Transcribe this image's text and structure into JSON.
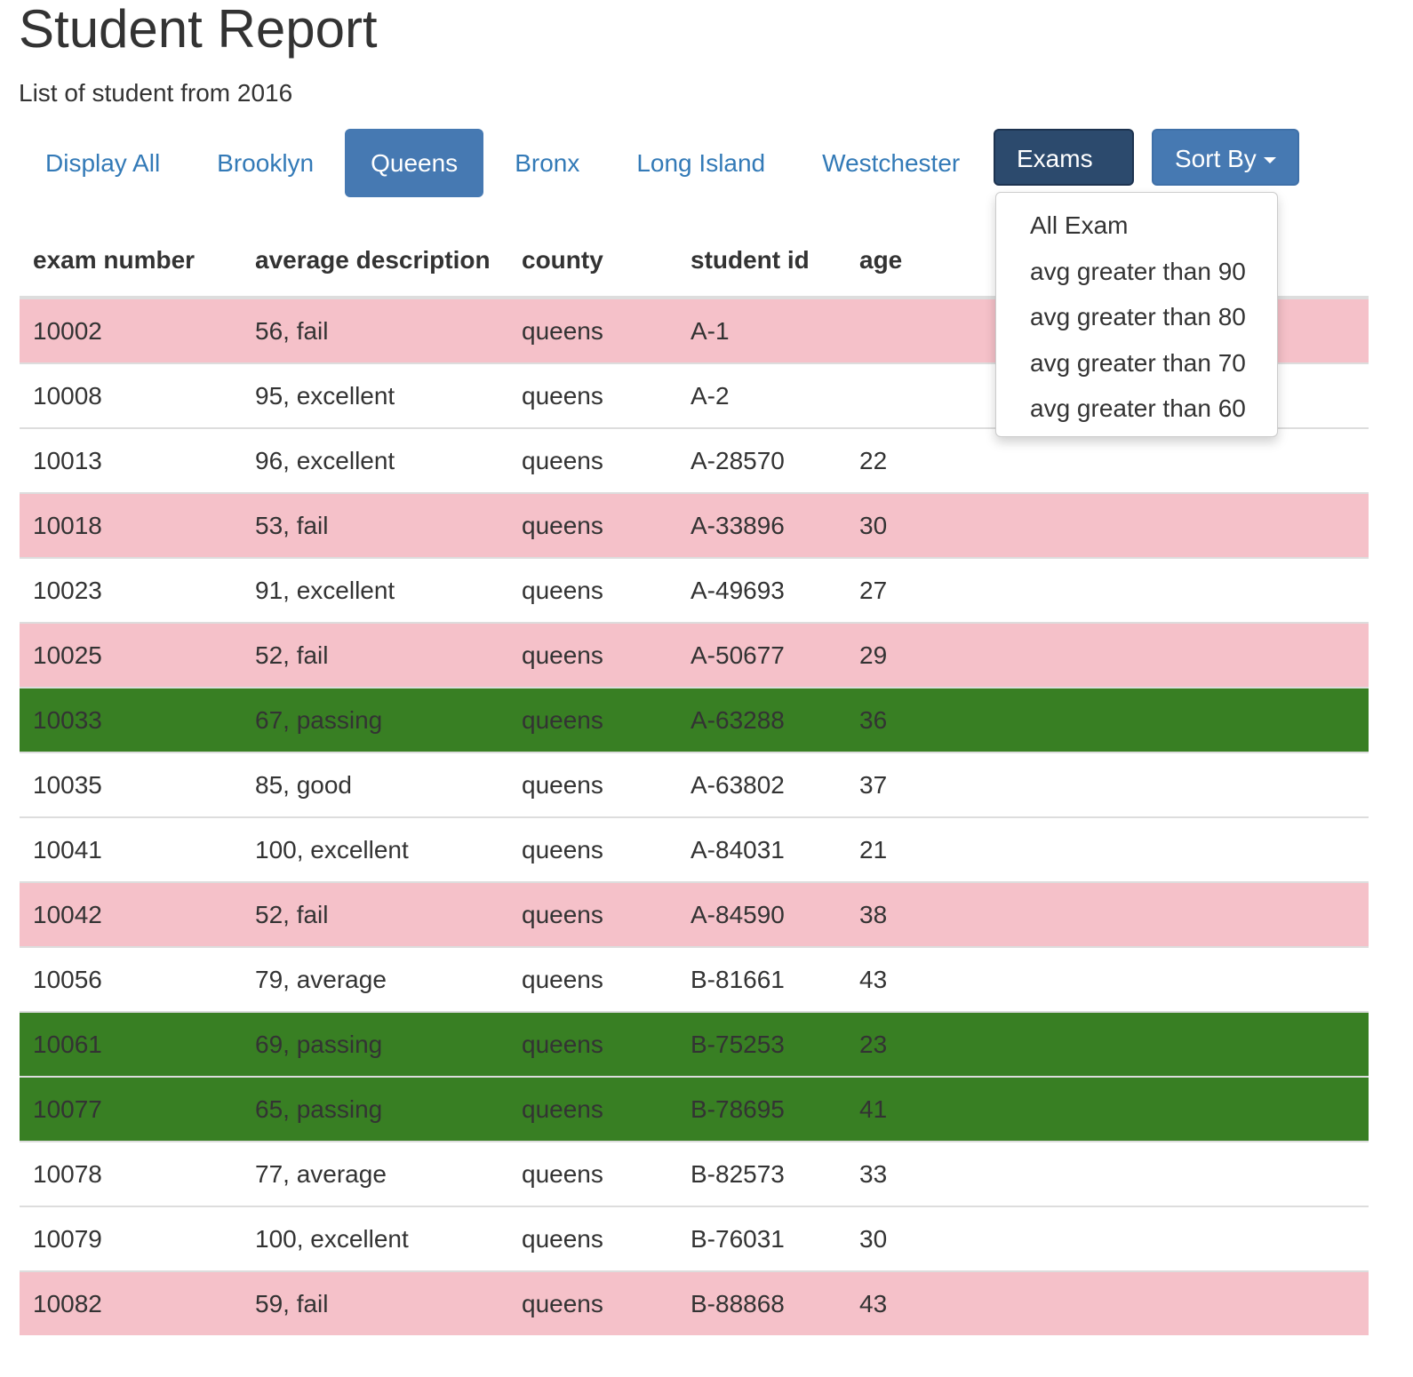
{
  "title": "Student Report",
  "subtitle": "List of student from 2016",
  "nav": [
    {
      "label": "Display All"
    },
    {
      "label": "Brooklyn"
    },
    {
      "label": "Queens",
      "active": true
    },
    {
      "label": "Bronx"
    },
    {
      "label": "Long Island"
    },
    {
      "label": "Westchester"
    }
  ],
  "buttons": {
    "exams": "Exams",
    "sort": "Sort By"
  },
  "exams_menu": [
    "All Exam",
    "avg greater than 90",
    "avg greater than 80",
    "avg greater than 70",
    "avg greater than 60"
  ],
  "colors": {
    "fail": "#f5c1c9",
    "passing": "#387f23",
    "active": "#4679b2",
    "link": "#337ab7"
  },
  "table": {
    "headers": [
      "exam number",
      "average description",
      "county",
      "student id",
      "age"
    ],
    "rows": [
      {
        "exam": "10002",
        "avg": "56, fail",
        "county": "queens",
        "id": "A-1",
        "age": "",
        "status": "fail"
      },
      {
        "exam": "10008",
        "avg": "95, excellent",
        "county": "queens",
        "id": "A-2",
        "age": "",
        "status": ""
      },
      {
        "exam": "10013",
        "avg": "96, excellent",
        "county": "queens",
        "id": "A-28570",
        "age": "22",
        "status": ""
      },
      {
        "exam": "10018",
        "avg": "53, fail",
        "county": "queens",
        "id": "A-33896",
        "age": "30",
        "status": "fail"
      },
      {
        "exam": "10023",
        "avg": "91, excellent",
        "county": "queens",
        "id": "A-49693",
        "age": "27",
        "status": ""
      },
      {
        "exam": "10025",
        "avg": "52, fail",
        "county": "queens",
        "id": "A-50677",
        "age": "29",
        "status": "fail"
      },
      {
        "exam": "10033",
        "avg": "67, passing",
        "county": "queens",
        "id": "A-63288",
        "age": "36",
        "status": "pass"
      },
      {
        "exam": "10035",
        "avg": "85, good",
        "county": "queens",
        "id": "A-63802",
        "age": "37",
        "status": ""
      },
      {
        "exam": "10041",
        "avg": "100, excellent",
        "county": "queens",
        "id": "A-84031",
        "age": "21",
        "status": ""
      },
      {
        "exam": "10042",
        "avg": "52, fail",
        "county": "queens",
        "id": "A-84590",
        "age": "38",
        "status": "fail"
      },
      {
        "exam": "10056",
        "avg": "79, average",
        "county": "queens",
        "id": "B-81661",
        "age": "43",
        "status": ""
      },
      {
        "exam": "10061",
        "avg": "69, passing",
        "county": "queens",
        "id": "B-75253",
        "age": "23",
        "status": "pass"
      },
      {
        "exam": "10077",
        "avg": "65, passing",
        "county": "queens",
        "id": "B-78695",
        "age": "41",
        "status": "pass"
      },
      {
        "exam": "10078",
        "avg": "77, average",
        "county": "queens",
        "id": "B-82573",
        "age": "33",
        "status": ""
      },
      {
        "exam": "10079",
        "avg": "100, excellent",
        "county": "queens",
        "id": "B-76031",
        "age": "30",
        "status": ""
      },
      {
        "exam": "10082",
        "avg": "59, fail",
        "county": "queens",
        "id": "B-88868",
        "age": "43",
        "status": "fail"
      }
    ]
  }
}
